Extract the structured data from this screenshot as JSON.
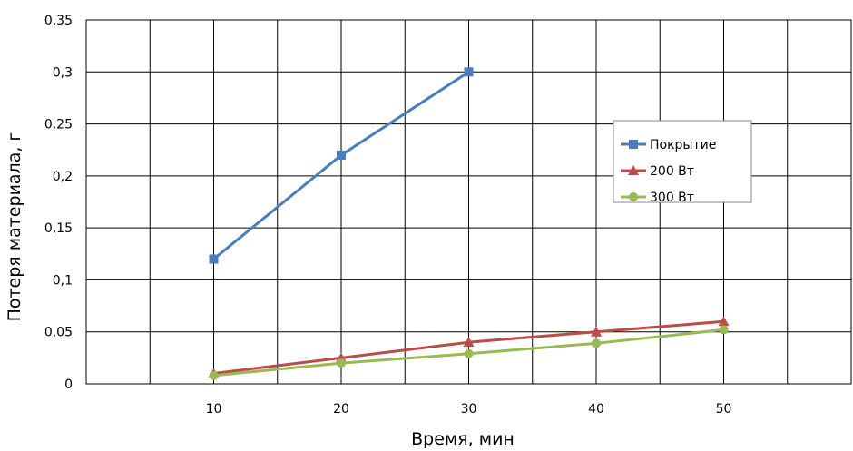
{
  "chart_data": {
    "type": "line",
    "x": [
      10,
      20,
      30,
      40,
      50
    ],
    "x_tick_labels": [
      "10",
      "20",
      "30",
      "40",
      "50"
    ],
    "y_tick_labels": [
      "0",
      "0,05",
      "0,1",
      "0,15",
      "0,2",
      "0,25",
      "0,3",
      "0,35"
    ],
    "y_ticks": [
      0,
      0.05,
      0.1,
      0.15,
      0.2,
      0.25,
      0.3,
      0.35
    ],
    "xlim": [
      0,
      60
    ],
    "ylim": [
      0,
      0.35
    ],
    "xlabel": "Время, мин",
    "ylabel": "Потеря материала, г",
    "grid": true,
    "legend_position": "right",
    "series": [
      {
        "name": "Покрытие",
        "color": "#4a7ebb",
        "marker": "square",
        "x": [
          10,
          20,
          30
        ],
        "values": [
          0.12,
          0.22,
          0.3
        ]
      },
      {
        "name": "200 Вт",
        "color": "#be4b48",
        "marker": "triangle",
        "x": [
          10,
          20,
          30,
          40,
          50
        ],
        "values": [
          0.01,
          0.025,
          0.04,
          0.05,
          0.06
        ]
      },
      {
        "name": "300 Вт",
        "color": "#98b954",
        "marker": "circle",
        "x": [
          10,
          20,
          30,
          40,
          50
        ],
        "values": [
          0.008,
          0.02,
          0.029,
          0.039,
          0.052
        ]
      }
    ]
  }
}
